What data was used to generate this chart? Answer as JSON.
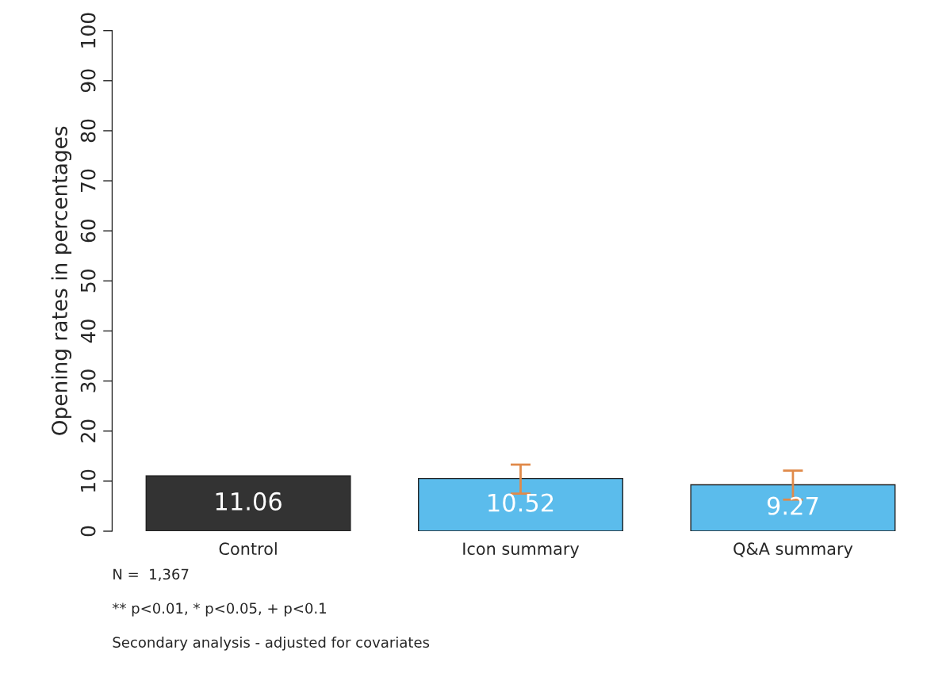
{
  "chart_data": {
    "type": "bar",
    "ylabel": "Opening rates in percentages",
    "categories": [
      "Control",
      "Icon summary",
      "Q&A summary"
    ],
    "values": [
      11.06,
      10.52,
      9.27
    ],
    "colors": [
      "#333333",
      "#5bbcec",
      "#5bbcec"
    ],
    "errors": [
      null,
      [
        7.5,
        13.3
      ],
      [
        6.3,
        12.1
      ]
    ],
    "ylim": [
      0,
      100
    ],
    "yticks": [
      0,
      10,
      20,
      30,
      40,
      50,
      60,
      70,
      80,
      90,
      100
    ],
    "data_labels": true,
    "grid": false,
    "legend": false,
    "annotations": [
      "N =  1,367",
      "** p<0.01, * p<0.05, + p<0.1",
      "Secondary analysis - adjusted for covariates"
    ]
  }
}
